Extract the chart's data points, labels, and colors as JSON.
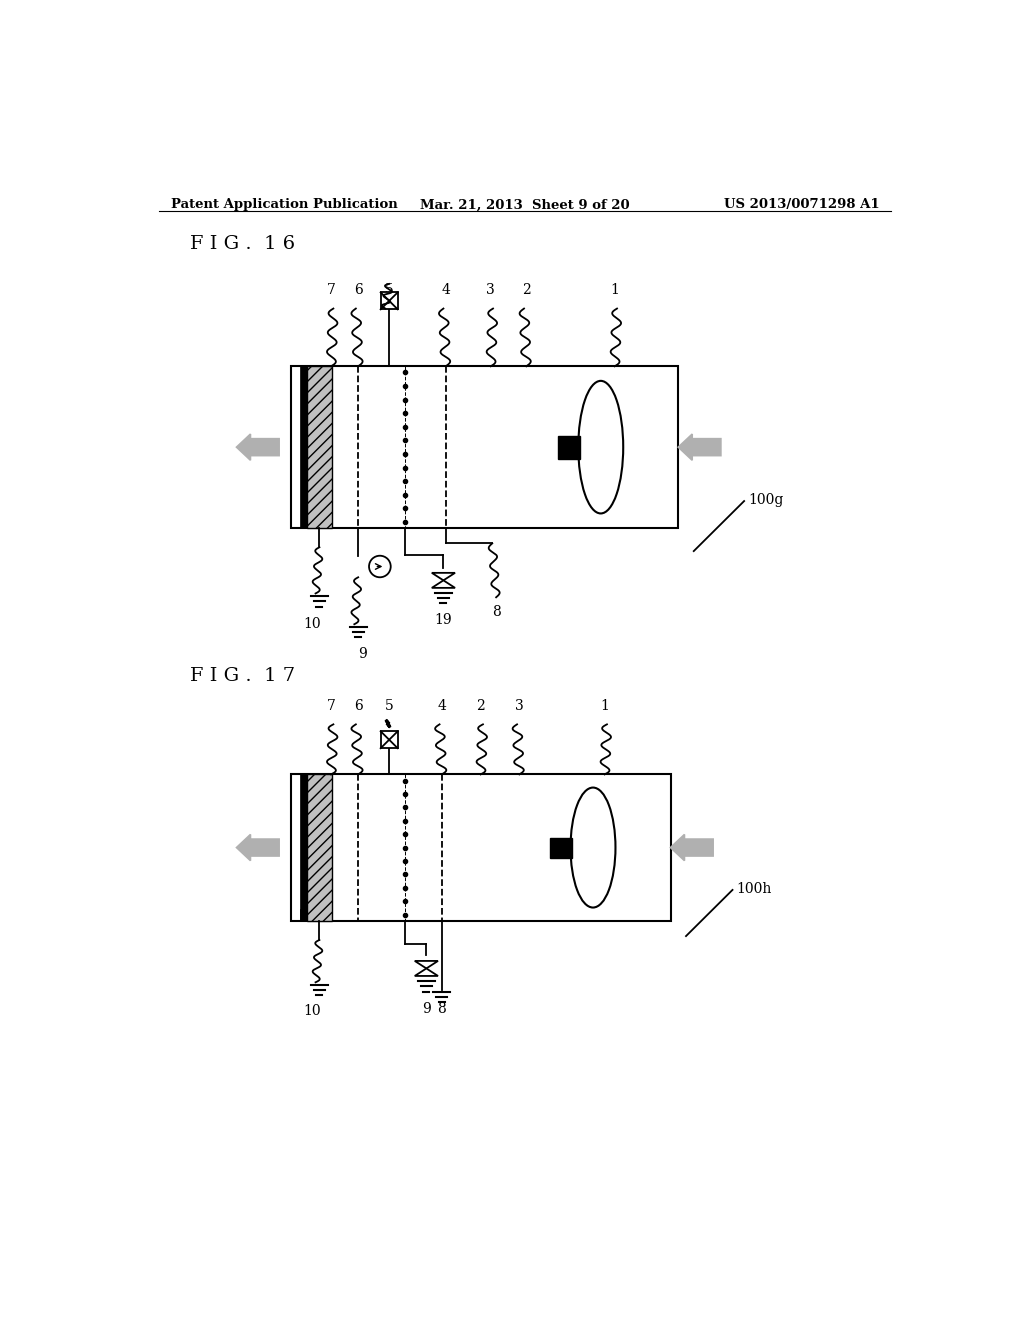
{
  "bg_color": "#ffffff",
  "header_left": "Patent Application Publication",
  "header_mid": "Mar. 21, 2013  Sheet 9 of 20",
  "header_right": "US 2013/0071298 A1",
  "fig16_label": "F I G .  1 6",
  "fig17_label": "F I G .  1 7",
  "fig16_ref": "100g",
  "fig17_ref": "100h"
}
